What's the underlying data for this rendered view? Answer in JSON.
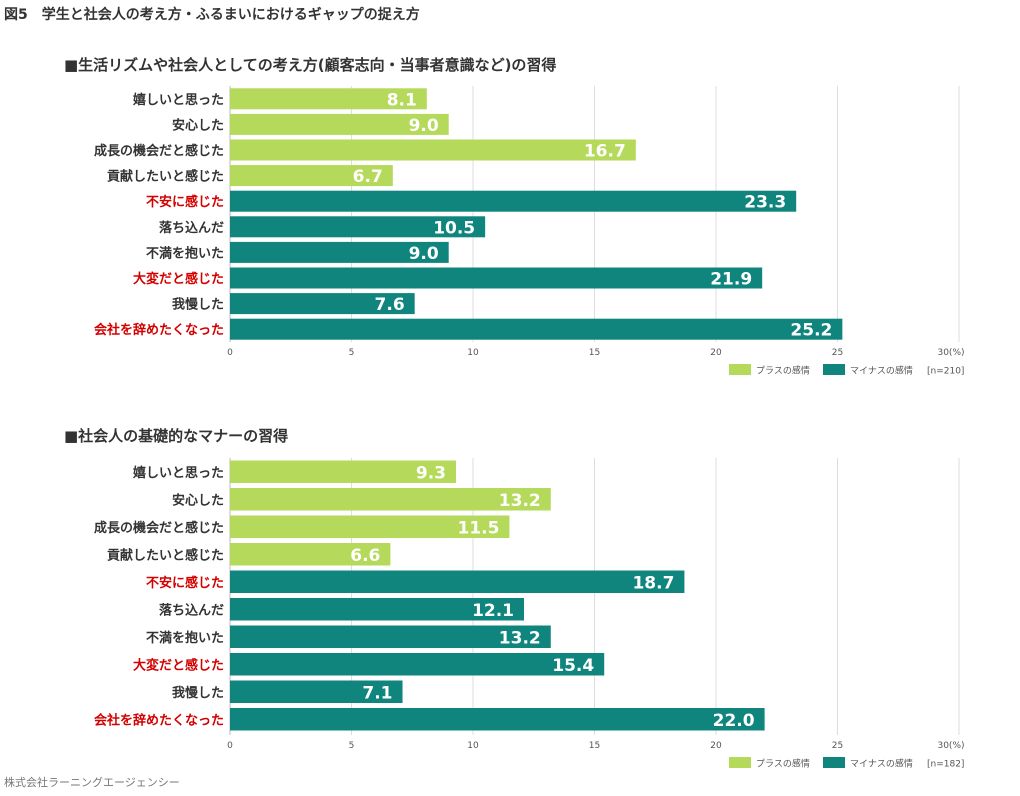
{
  "figure_title": "図5　学生と社会人の考え方・ふるまいにおけるギャップの捉え方",
  "footer": "株式会社ラーニングエージェンシー",
  "colors": {
    "plus": "#b5d95a",
    "minus": "#0f857e",
    "highlight_label": "#d40000",
    "normal_label": "#333333",
    "grid": "#dddddd"
  },
  "chart_data": [
    {
      "type": "bar",
      "orientation": "horizontal",
      "title": "■生活リズムや社会人としての考え方(顧客志向・当事者意識など)の習得",
      "categories": [
        "嬉しいと思った",
        "安心した",
        "成長の機会だと感じた",
        "貢献したいと感じた",
        "不安に感じた",
        "落ち込んだ",
        "不満を抱いた",
        "大変だと感じた",
        "我慢した",
        "会社を辞めたくなった"
      ],
      "values": [
        8.1,
        9.0,
        16.7,
        6.7,
        23.3,
        10.5,
        9.0,
        21.9,
        7.6,
        25.2
      ],
      "value_labels": [
        "8.1",
        "9.0",
        "16.7",
        "6.7",
        "23.3",
        "10.5",
        "9.0",
        "21.9",
        "7.6",
        "25.2"
      ],
      "series_of_bar": [
        "plus",
        "plus",
        "plus",
        "plus",
        "minus",
        "minus",
        "minus",
        "minus",
        "minus",
        "minus"
      ],
      "highlighted": [
        false,
        false,
        false,
        false,
        true,
        false,
        false,
        true,
        false,
        true
      ],
      "xlim": [
        0,
        30
      ],
      "xticks": [
        0,
        5,
        10,
        15,
        20,
        25,
        30
      ],
      "xtick_labels": [
        "0",
        "5",
        "10",
        "15",
        "20",
        "25",
        "30(%)"
      ],
      "legend": {
        "position": "bottom-right",
        "plus_label": "プラスの感情",
        "minus_label": "マイナスの感情",
        "n_label": "[n=210]"
      },
      "grid": true
    },
    {
      "type": "bar",
      "orientation": "horizontal",
      "title": "■社会人の基礎的なマナーの習得",
      "categories": [
        "嬉しいと思った",
        "安心した",
        "成長の機会だと感じた",
        "貢献したいと感じた",
        "不安に感じた",
        "落ち込んだ",
        "不満を抱いた",
        "大変だと感じた",
        "我慢した",
        "会社を辞めたくなった"
      ],
      "values": [
        9.3,
        13.2,
        11.5,
        6.6,
        18.7,
        12.1,
        13.2,
        15.4,
        7.1,
        22.0
      ],
      "value_labels": [
        "9.3",
        "13.2",
        "11.5",
        "6.6",
        "18.7",
        "12.1",
        "13.2",
        "15.4",
        "7.1",
        "22.0"
      ],
      "series_of_bar": [
        "plus",
        "plus",
        "plus",
        "plus",
        "minus",
        "minus",
        "minus",
        "minus",
        "minus",
        "minus"
      ],
      "highlighted": [
        false,
        false,
        false,
        false,
        true,
        false,
        false,
        true,
        false,
        true
      ],
      "xlim": [
        0,
        30
      ],
      "xticks": [
        0,
        5,
        10,
        15,
        20,
        25,
        30
      ],
      "xtick_labels": [
        "0",
        "5",
        "10",
        "15",
        "20",
        "25",
        "30(%)"
      ],
      "legend": {
        "position": "bottom-right",
        "plus_label": "プラスの感情",
        "minus_label": "マイナスの感情",
        "n_label": "[n=182]"
      },
      "grid": true
    }
  ]
}
